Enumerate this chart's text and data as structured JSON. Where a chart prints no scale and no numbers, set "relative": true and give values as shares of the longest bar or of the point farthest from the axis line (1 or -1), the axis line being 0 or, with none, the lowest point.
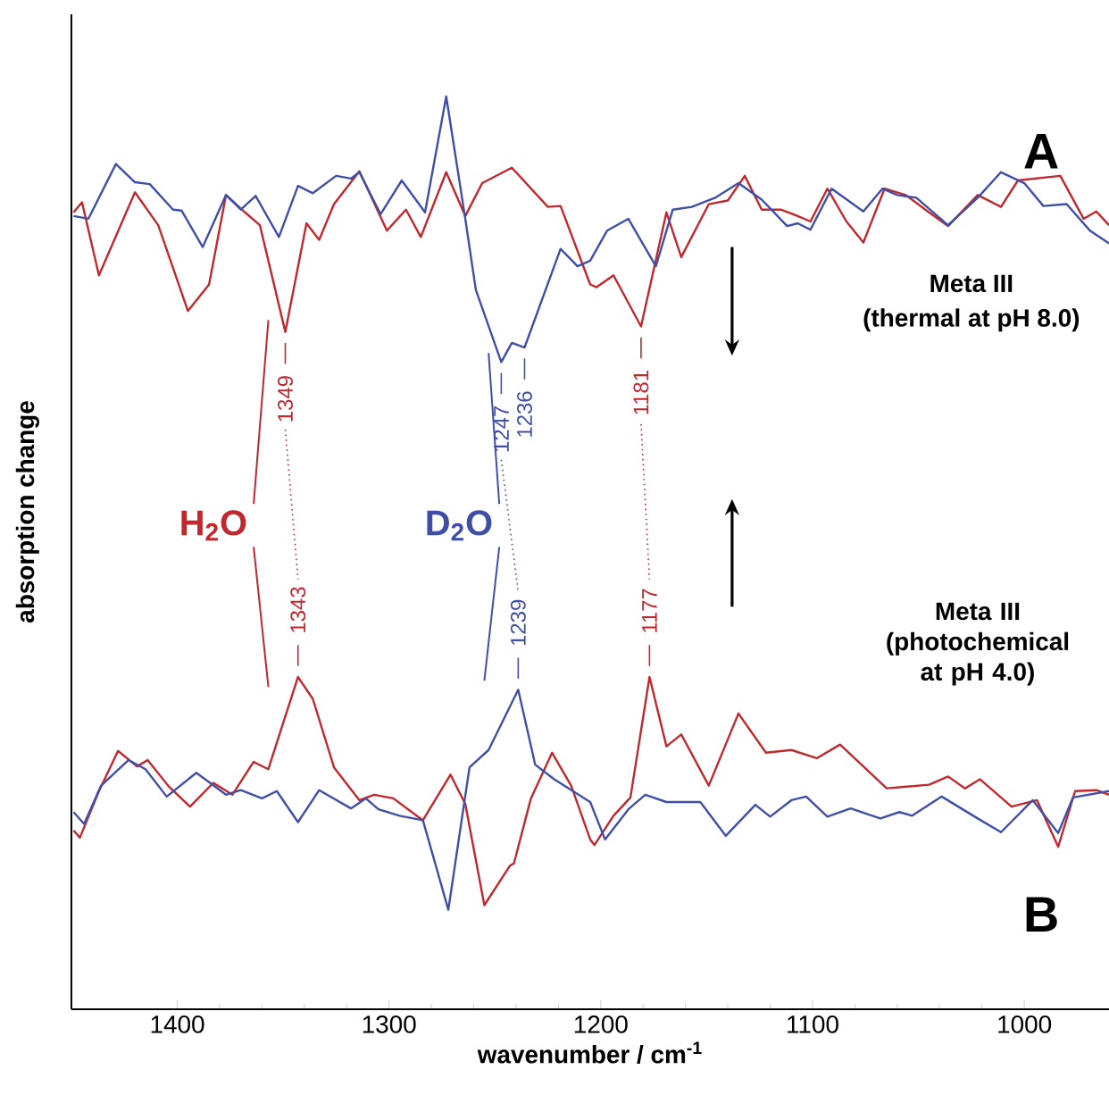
{
  "chart_data": {
    "type": "line",
    "relative": true,
    "xlabel": "wavenumber / cm$^{-1}$",
    "ylabel": "absorption change",
    "xlim": [
      1450,
      960
    ],
    "xticks": [
      1400,
      1300,
      1200,
      1100,
      1000
    ],
    "grid": false,
    "marker": "none",
    "line_style": "solid",
    "series": [
      {
        "color": "#c0282d",
        "x": [
          1449,
          1445,
          1437,
          1420,
          1409,
          1395,
          1385,
          1377,
          1368,
          1361,
          1349,
          1339,
          1333,
          1326,
          1314,
          1301,
          1292,
          1285,
          1273,
          1264,
          1256,
          1242,
          1225,
          1219,
          1205,
          1202,
          1194,
          1181,
          1169,
          1162,
          1149,
          1140,
          1132,
          1124,
          1115,
          1107,
          1101,
          1093,
          1084,
          1076,
          1066,
          1056,
          1045,
          1036,
          1022,
          1011,
          1003,
          983,
          972,
          966,
          960
        ],
        "values": [
          0.873,
          0.884,
          0.804,
          0.895,
          0.859,
          0.765,
          0.794,
          0.892,
          0.873,
          0.859,
          0.742,
          0.861,
          0.843,
          0.882,
          0.918,
          0.853,
          0.876,
          0.846,
          0.917,
          0.869,
          0.905,
          0.922,
          0.879,
          0.88,
          0.794,
          0.791,
          0.804,
          0.748,
          0.873,
          0.824,
          0.882,
          0.886,
          0.913,
          0.876,
          0.876,
          0.869,
          0.863,
          0.899,
          0.863,
          0.84,
          0.899,
          0.892,
          0.873,
          0.858,
          0.892,
          0.879,
          0.908,
          0.913,
          0.866,
          0.874,
          0.859
        ]
      },
      {
        "color": "#3f4fa8",
        "x": [
          1449,
          1442,
          1429,
          1420,
          1413,
          1402,
          1398,
          1388,
          1377,
          1370,
          1363,
          1352,
          1343,
          1336,
          1325,
          1318,
          1314,
          1304,
          1294,
          1283,
          1273,
          1264,
          1259,
          1247,
          1242,
          1236,
          1219,
          1211,
          1205,
          1197,
          1187,
          1174,
          1166,
          1157,
          1146,
          1135,
          1124,
          1112,
          1107,
          1101,
          1091,
          1076,
          1067,
          1060,
          1051,
          1036,
          1022,
          1011,
          1000,
          991,
          980,
          969,
          960
        ],
        "values": [
          0.869,
          0.866,
          0.926,
          0.906,
          0.904,
          0.876,
          0.875,
          0.835,
          0.892,
          0.876,
          0.891,
          0.846,
          0.902,
          0.894,
          0.913,
          0.91,
          0.917,
          0.871,
          0.908,
          0.873,
          1.0,
          0.866,
          0.788,
          0.709,
          0.73,
          0.725,
          0.833,
          0.814,
          0.82,
          0.853,
          0.866,
          0.814,
          0.876,
          0.879,
          0.889,
          0.905,
          0.887,
          0.858,
          0.861,
          0.854,
          0.899,
          0.874,
          0.899,
          0.892,
          0.889,
          0.859,
          0.889,
          0.917,
          0.905,
          0.88,
          0.882,
          0.853,
          0.839
        ]
      },
      {
        "color": "#c0282d",
        "x": [
          1449,
          1446,
          1437,
          1428,
          1419,
          1414,
          1404,
          1394,
          1383,
          1374,
          1364,
          1357,
          1343,
          1336,
          1326,
          1314,
          1307,
          1298,
          1284,
          1271,
          1264,
          1255,
          1243,
          1241,
          1233,
          1223,
          1214,
          1205,
          1203,
          1194,
          1186,
          1177,
          1169,
          1162,
          1149,
          1135,
          1122,
          1110,
          1098,
          1087,
          1065,
          1045,
          1036,
          1028,
          1021,
          1006,
          994,
          984,
          976,
          966,
          960
        ],
        "values": [
          0.196,
          0.188,
          0.239,
          0.283,
          0.266,
          0.273,
          0.244,
          0.222,
          0.248,
          0.235,
          0.271,
          0.263,
          0.364,
          0.34,
          0.265,
          0.229,
          0.235,
          0.231,
          0.207,
          0.257,
          0.225,
          0.114,
          0.157,
          0.16,
          0.231,
          0.281,
          0.245,
          0.186,
          0.18,
          0.212,
          0.232,
          0.364,
          0.288,
          0.301,
          0.245,
          0.324,
          0.281,
          0.284,
          0.275,
          0.29,
          0.242,
          0.246,
          0.255,
          0.242,
          0.252,
          0.222,
          0.229,
          0.178,
          0.239,
          0.24,
          0.235
        ]
      },
      {
        "color": "#3f4fa8",
        "x": [
          1449,
          1444,
          1436,
          1423,
          1415,
          1405,
          1391,
          1377,
          1370,
          1360,
          1353,
          1343,
          1333,
          1318,
          1311,
          1305,
          1295,
          1284,
          1272,
          1262,
          1253,
          1239,
          1231,
          1222,
          1205,
          1198,
          1187,
          1179,
          1169,
          1153,
          1141,
          1127,
          1120,
          1110,
          1103,
          1093,
          1082,
          1068,
          1059,
          1053,
          1039,
          1022,
          1011,
          996,
          984,
          977,
          960
        ],
        "values": [
          0.216,
          0.203,
          0.245,
          0.273,
          0.263,
          0.233,
          0.259,
          0.235,
          0.24,
          0.231,
          0.239,
          0.205,
          0.24,
          0.22,
          0.231,
          0.219,
          0.212,
          0.207,
          0.109,
          0.265,
          0.284,
          0.35,
          0.268,
          0.252,
          0.227,
          0.186,
          0.219,
          0.235,
          0.227,
          0.227,
          0.19,
          0.224,
          0.211,
          0.229,
          0.233,
          0.211,
          0.22,
          0.209,
          0.216,
          0.212,
          0.233,
          0.209,
          0.194,
          0.229,
          0.193,
          0.232,
          0.239
        ]
      }
    ],
    "annotations": [
      "A",
      "B",
      "Meta III",
      "(thermal at pH 8.0)",
      "Meta III (photochemical at pH 4.0)",
      "H$_{2}$O",
      "D$_{2}$O",
      {
        "text": "1349",
        "x": 1349,
        "y": 0.742
      },
      {
        "text": "1343",
        "x": 1343,
        "y": 0.364
      },
      {
        "text": "1247",
        "x": 1247,
        "y": 0.709
      },
      {
        "text": "1236",
        "x": 1236,
        "y": 0.725
      },
      {
        "text": "1239",
        "x": 1239,
        "y": 0.35
      },
      {
        "text": "1181",
        "x": 1181,
        "y": 0.748
      },
      {
        "text": "1177",
        "x": 1177,
        "y": 0.364
      }
    ]
  }
}
